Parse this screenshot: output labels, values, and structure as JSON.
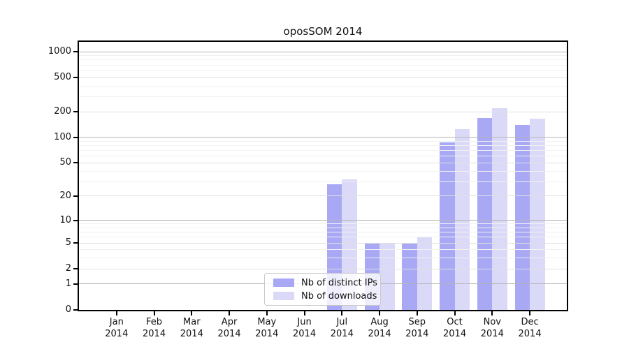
{
  "colors": {
    "ips_bar": "#a8a8f5",
    "downloads_bar": "#dadaf8",
    "grid_major": "#b4b4b4",
    "grid_mid": "#e0e0e0",
    "grid_minor": "#f1f1f1",
    "axis": "#000000",
    "text": "#111111",
    "legend_border": "#c9c9c9"
  },
  "chart_data": {
    "type": "bar",
    "title": "oposSOM 2014",
    "xlabel": "",
    "ylabel": "",
    "yscale": "log1p",
    "ylim": [
      0,
      1300
    ],
    "yticks": [
      0,
      1,
      2,
      5,
      10,
      20,
      50,
      100,
      200,
      500,
      1000
    ],
    "grid": true,
    "grid_major_values": [
      1,
      10,
      100,
      1000
    ],
    "grid_mid_values": [
      2,
      5,
      20,
      50,
      200,
      500
    ],
    "grid_minor_values": [
      3,
      4,
      6,
      7,
      8,
      9,
      30,
      40,
      60,
      70,
      80,
      90,
      300,
      400,
      600,
      700,
      800,
      900
    ],
    "legend_position": "lower-center-inside",
    "categories": [
      "Jan 2014",
      "Feb 2014",
      "Mar 2014",
      "Apr 2014",
      "May 2014",
      "Jun 2014",
      "Jul 2014",
      "Aug 2014",
      "Sep 2014",
      "Oct 2014",
      "Nov 2014",
      "Dec 2014"
    ],
    "series": [
      {
        "name": "Nb of distinct IPs",
        "color_key": "ips_bar",
        "values": [
          0,
          0,
          0,
          0,
          0,
          0,
          28,
          5,
          5,
          88,
          170,
          140
        ]
      },
      {
        "name": "Nb of downloads",
        "color_key": "downloads_bar",
        "values": [
          0,
          0,
          0,
          0,
          0,
          0,
          32,
          5,
          6,
          125,
          220,
          165
        ]
      }
    ]
  }
}
